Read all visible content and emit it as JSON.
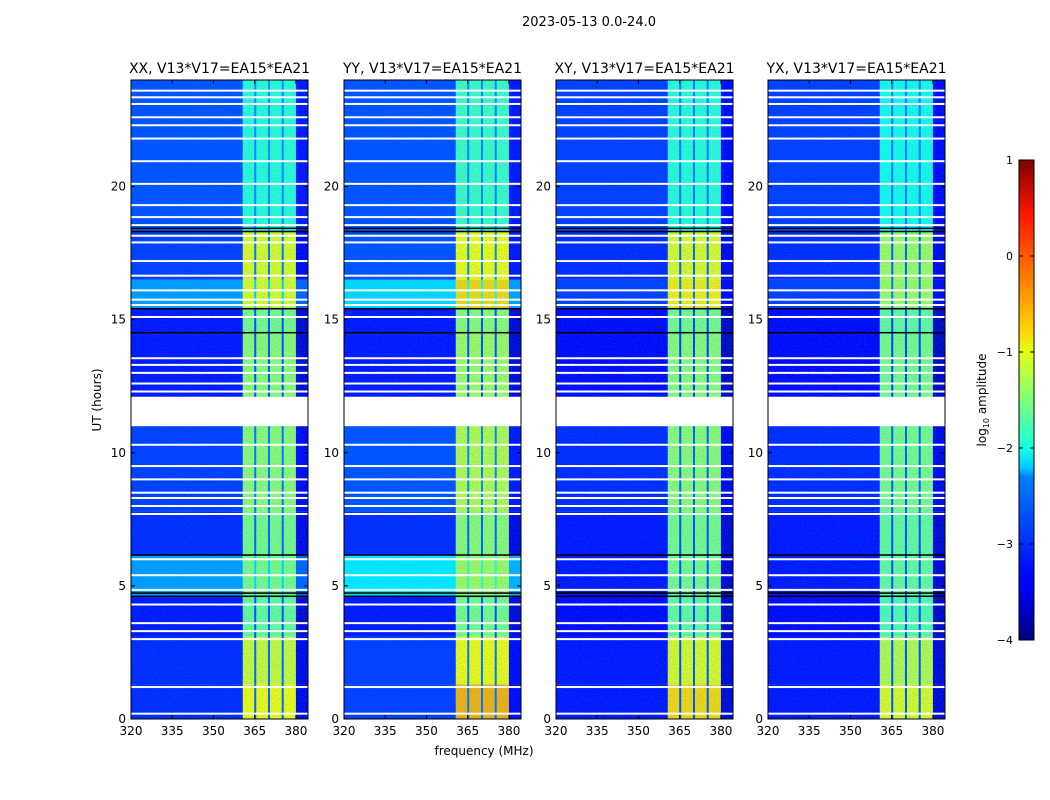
{
  "chart_data": {
    "type": "heatmap",
    "suptitle": "2023-05-13 0.0-24.0",
    "xlabel": "frequency (MHz)",
    "ylabel": "UT (hours)",
    "xlim": [
      320,
      384.4
    ],
    "ylim": [
      0,
      24
    ],
    "xticks": [
      "320",
      "335",
      "350",
      "365",
      "380"
    ],
    "xtick_values": [
      320,
      335,
      350,
      365,
      380
    ],
    "yticks": [
      "0",
      "5",
      "10",
      "15",
      "20"
    ],
    "ytick_values": [
      0,
      5,
      10,
      15,
      20
    ],
    "colorbar": {
      "label_main": "log",
      "label_sub": "10",
      "label_rest": " amplitude",
      "range": [
        -4,
        1
      ],
      "ticks": [
        "1",
        "0",
        "−1",
        "−2",
        "−3",
        "−4"
      ],
      "tick_values": [
        1,
        0,
        -1,
        -2,
        -3,
        -4
      ],
      "colormap": "jet"
    },
    "rfi_band_mhz": [
      360.7,
      380
    ],
    "band_channel_edges_mhz": [
      365.2,
      370.2,
      375.2
    ],
    "flagged_time_ranges": [
      [
        11.0,
        12.1
      ]
    ],
    "flagged_lines_hours": [
      0.2,
      1.2,
      3.0,
      3.3,
      3.6,
      4.3,
      4.85,
      5.4,
      6.0,
      7.7,
      8.0,
      8.3,
      8.5,
      9.0,
      9.5,
      10.3,
      12.3,
      12.6,
      13.0,
      13.3,
      13.55,
      15.1,
      15.55,
      15.75,
      16.1,
      16.65,
      17.2,
      17.9,
      18.15,
      18.55,
      18.85,
      19.3,
      20.1,
      20.95,
      21.8,
      22.3,
      22.6,
      23.1,
      23.35,
      23.6
    ],
    "dark_lines_hours": [
      4.6,
      4.72,
      6.15,
      14.5,
      15.4,
      18.3,
      18.42
    ],
    "panels": [
      {
        "title": "XX, V13*V17=EA15*EA21",
        "segments": [
          {
            "t": [
              0,
              1.3
            ],
            "bg": -3.2,
            "band": -0.9
          },
          {
            "t": [
              1.3,
              3.1
            ],
            "bg": -3.2,
            "band": -1.1
          },
          {
            "t": [
              3.1,
              4.6
            ],
            "bg": -3.3,
            "band": -1.6
          },
          {
            "t": [
              4.6,
              6.15
            ],
            "bg": -2.6,
            "band": -1.5
          },
          {
            "t": [
              6.15,
              7.8
            ],
            "bg": -3.2,
            "band": -1.5
          },
          {
            "t": [
              7.8,
              11.0
            ],
            "bg": -3.1,
            "band": -1.4
          },
          {
            "t": [
              12.1,
              14.5
            ],
            "bg": -3.3,
            "band": -1.4
          },
          {
            "t": [
              14.5,
              15.4
            ],
            "bg": -3.3,
            "band": -1.5
          },
          {
            "t": [
              15.4,
              16.5
            ],
            "bg": -2.6,
            "band": -1.0
          },
          {
            "t": [
              16.5,
              18.3
            ],
            "bg": -3.1,
            "band": -1.0
          },
          {
            "t": [
              18.3,
              24
            ],
            "bg": -3.0,
            "band": -1.9
          }
        ]
      },
      {
        "title": "YY, V13*V17=EA15*EA21",
        "segments": [
          {
            "t": [
              0,
              1.3
            ],
            "bg": -3.1,
            "band": -0.5
          },
          {
            "t": [
              1.3,
              3.1
            ],
            "bg": -3.1,
            "band": -0.9
          },
          {
            "t": [
              3.1,
              4.6
            ],
            "bg": -3.3,
            "band": -1.5
          },
          {
            "t": [
              4.6,
              6.15
            ],
            "bg": -2.2,
            "band": -1.3
          },
          {
            "t": [
              6.15,
              7.8
            ],
            "bg": -3.2,
            "band": -1.4
          },
          {
            "t": [
              7.8,
              11.0
            ],
            "bg": -3.0,
            "band": -1.2
          },
          {
            "t": [
              12.1,
              14.5
            ],
            "bg": -3.3,
            "band": -1.3
          },
          {
            "t": [
              14.5,
              15.4
            ],
            "bg": -3.3,
            "band": -1.4
          },
          {
            "t": [
              15.4,
              16.5
            ],
            "bg": -2.3,
            "band": -0.7
          },
          {
            "t": [
              16.5,
              18.3
            ],
            "bg": -3.0,
            "band": -0.9
          },
          {
            "t": [
              18.3,
              24
            ],
            "bg": -3.0,
            "band": -1.8
          }
        ]
      },
      {
        "title": "XY, V13*V17=EA15*EA21",
        "segments": [
          {
            "t": [
              0,
              1.3
            ],
            "bg": -3.3,
            "band": -0.7
          },
          {
            "t": [
              1.3,
              3.1
            ],
            "bg": -3.3,
            "band": -1.0
          },
          {
            "t": [
              3.1,
              4.6
            ],
            "bg": -3.4,
            "band": -1.6
          },
          {
            "t": [
              4.6,
              6.15
            ],
            "bg": -3.3,
            "band": -1.5
          },
          {
            "t": [
              6.15,
              7.8
            ],
            "bg": -3.3,
            "band": -1.5
          },
          {
            "t": [
              7.8,
              11.0
            ],
            "bg": -3.2,
            "band": -1.4
          },
          {
            "t": [
              12.1,
              14.5
            ],
            "bg": -3.4,
            "band": -1.4
          },
          {
            "t": [
              14.5,
              15.4
            ],
            "bg": -3.4,
            "band": -1.5
          },
          {
            "t": [
              15.4,
              16.5
            ],
            "bg": -3.1,
            "band": -0.8
          },
          {
            "t": [
              16.5,
              18.3
            ],
            "bg": -3.2,
            "band": -1.0
          },
          {
            "t": [
              18.3,
              24
            ],
            "bg": -3.1,
            "band": -1.9
          }
        ]
      },
      {
        "title": "YX, V13*V17=EA15*EA21",
        "segments": [
          {
            "t": [
              0,
              1.3
            ],
            "bg": -3.3,
            "band": -1.0
          },
          {
            "t": [
              1.3,
              3.1
            ],
            "bg": -3.3,
            "band": -1.2
          },
          {
            "t": [
              3.1,
              4.6
            ],
            "bg": -3.4,
            "band": -1.7
          },
          {
            "t": [
              4.6,
              6.15
            ],
            "bg": -3.3,
            "band": -1.6
          },
          {
            "t": [
              6.15,
              7.8
            ],
            "bg": -3.3,
            "band": -1.6
          },
          {
            "t": [
              7.8,
              11.0
            ],
            "bg": -3.2,
            "band": -1.5
          },
          {
            "t": [
              12.1,
              14.5
            ],
            "bg": -3.4,
            "band": -1.5
          },
          {
            "t": [
              14.5,
              15.4
            ],
            "bg": -3.4,
            "band": -1.6
          },
          {
            "t": [
              15.4,
              16.5
            ],
            "bg": -3.1,
            "band": -1.3
          },
          {
            "t": [
              16.5,
              18.3
            ],
            "bg": -3.2,
            "band": -1.3
          },
          {
            "t": [
              18.3,
              24
            ],
            "bg": -3.1,
            "band": -2.0
          }
        ]
      }
    ]
  }
}
